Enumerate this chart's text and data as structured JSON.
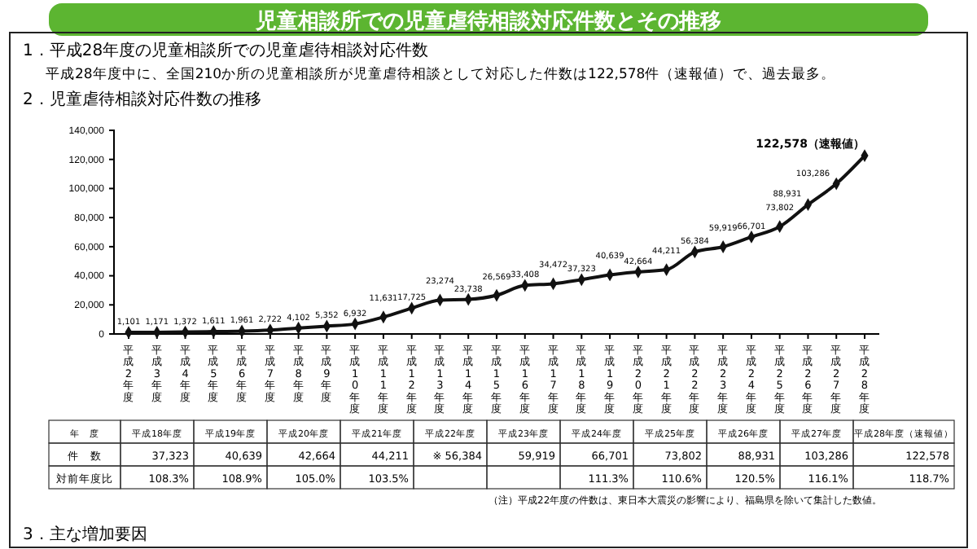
{
  "chart_data": {
    "type": "line",
    "title": "児童相談所での児童虐待相談対応件数とその推移",
    "subtitle": "2．児童虐待相談対応件数の推移",
    "categories": [
      "平成2年度",
      "平成3年度",
      "平成4年度",
      "平成5年度",
      "平成6年度",
      "平成7年度",
      "平成8年度",
      "平成9年度",
      "平成10年度",
      "平成11年度",
      "平成12年度",
      "平成13年度",
      "平成14年度",
      "平成15年度",
      "平成16年度",
      "平成17年度",
      "平成18年度",
      "平成19年度",
      "平成20年度",
      "平成21年度",
      "平成22年度",
      "平成23年度",
      "平成24年度",
      "平成25年度",
      "平成26年度",
      "平成27年度",
      "平成28年度"
    ],
    "series": [
      {
        "color": "#111111",
        "values": [
          1101,
          1171,
          1372,
          1611,
          1961,
          2722,
          4102,
          5352,
          6932,
          11631,
          17725,
          23274,
          23738,
          26569,
          33408,
          34472,
          37323,
          40639,
          42664,
          44211,
          56384,
          59919,
          66701,
          73802,
          88931,
          103286,
          122578
        ],
        "value_labels": [
          "1,101",
          "1,171",
          "1,372",
          "1,611",
          "1,961",
          "2,722",
          "4,102",
          "5,352",
          "6,932",
          "11,631",
          "17,725",
          "23,274",
          "23,738",
          "26,569",
          "33,408",
          "34,472",
          "37,323",
          "40,639",
          "42,664",
          "44,211",
          "56,384",
          "59,919",
          "66,701",
          "73,802",
          "88,931",
          "103,286",
          "122,578（速報値）"
        ]
      }
    ],
    "ylim": [
      0,
      140000
    ],
    "yticks": [
      {
        "value": 0,
        "label": "0"
      },
      {
        "value": 20000,
        "label": "20,000"
      },
      {
        "value": 40000,
        "label": "40,000"
      },
      {
        "value": 60000,
        "label": "60,000"
      },
      {
        "value": 80000,
        "label": "80,000"
      },
      {
        "value": 100000,
        "label": "100,000"
      },
      {
        "value": 120000,
        "label": "120,000"
      },
      {
        "value": 140000,
        "label": "140,000"
      }
    ],
    "grid": false,
    "marker": "diamond",
    "line_style": "solid",
    "annotations": [
      "1．平成28年度の児童相談所での児童虐待相談対応件数",
      "平成28年度中に、全国210か所の児童相談所が児童虐待相談として対応した件数は122,578件（速報値）で、過去最多。",
      "（注）平成22年度の件数は、東日本大震災の影響により、福島県を除いて集計した数値。",
      "3．主な増加要因",
      "年　度",
      "平成18年度",
      "平成19年度",
      "平成20年度",
      "平成21年度",
      "平成22年度",
      "平成23年度",
      "平成24年度",
      "平成25年度",
      "平成26年度",
      "平成27年度",
      "平成28年度（速報値）",
      "件　数",
      "37,323",
      "40,639",
      "42,664",
      "44,211",
      "※ 56,384",
      "59,919",
      "66,701",
      "73,802",
      "88,931",
      "103,286",
      "122,578",
      "対前年度比",
      "108.3%",
      "108.9%",
      "105.0%",
      "103.5%",
      null,
      null,
      "111.3%",
      "110.6%",
      "120.5%",
      "116.1%",
      "118.7%"
    ]
  }
}
